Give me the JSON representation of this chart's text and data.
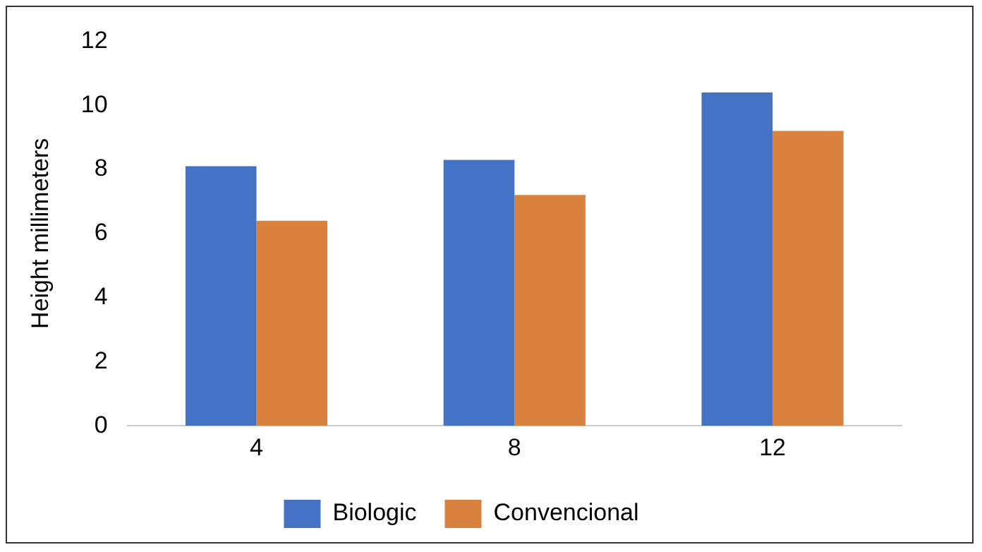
{
  "chart_data": {
    "type": "bar",
    "ylabel": "Height millimeters",
    "categories": [
      "4",
      "8",
      "12"
    ],
    "series": [
      {
        "name": "Biologic",
        "color": "#4472c4",
        "values": [
          8.1,
          8.3,
          10.4
        ]
      },
      {
        "name": "Convencional",
        "color": "#d9813f",
        "values": [
          6.4,
          7.2,
          9.2
        ]
      }
    ],
    "ylim": [
      0,
      12
    ],
    "yticks": [
      0,
      2,
      4,
      6,
      8,
      10,
      12
    ],
    "grid": false,
    "legend": "bottom"
  }
}
